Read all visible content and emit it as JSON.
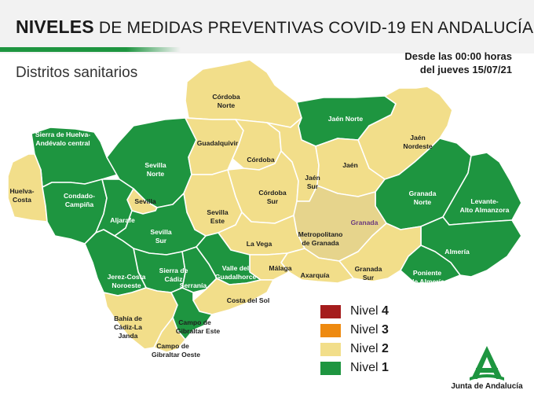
{
  "header": {
    "title_bold": "NIVELES",
    "title_rest": "DE MEDIDAS PREVENTIVAS COVID-19 EN ANDALUCÍA"
  },
  "subtitle": "Distritos sanitarios",
  "date": {
    "line1": "Desde las 00:00 horas",
    "line2": "del jueves 15/07/21"
  },
  "colors": {
    "nivel_4": "#a51c1c",
    "nivel_3": "#ee8a10",
    "nivel_2": "#f2de8a",
    "nivel_1": "#1e9540"
  },
  "legend": [
    {
      "prefix": "Nivel",
      "number": "4",
      "color": "#a51c1c"
    },
    {
      "prefix": "Nivel",
      "number": "3",
      "color": "#ee8a10"
    },
    {
      "prefix": "Nivel",
      "number": "2",
      "color": "#f2de8a"
    },
    {
      "prefix": "Nivel",
      "number": "1",
      "color": "#1e9540"
    }
  ],
  "districts": [
    {
      "name": "Córdoba Norte",
      "level": 2
    },
    {
      "name": "Jaén Norte",
      "level": 1
    },
    {
      "name": "Sierra de Huelva-Andévalo central",
      "level": 1
    },
    {
      "name": "Guadalquivir",
      "level": 2
    },
    {
      "name": "Jaén Nordeste",
      "level": 2
    },
    {
      "name": "Sevilla Norte",
      "level": 1
    },
    {
      "name": "Córdoba",
      "level": 2
    },
    {
      "name": "Jaén",
      "level": 2
    },
    {
      "name": "Jaén Sur",
      "level": 2
    },
    {
      "name": "Córdoba Sur",
      "level": 2
    },
    {
      "name": "Huelva-Costa",
      "level": 2
    },
    {
      "name": "Condado-Campiña",
      "level": 1
    },
    {
      "name": "Sevilla",
      "level": 2
    },
    {
      "name": "Sevilla Este",
      "level": 2
    },
    {
      "name": "Granada Norte",
      "level": 1
    },
    {
      "name": "Levante-Alto Almanzora",
      "level": 1
    },
    {
      "name": "Aljarafe",
      "level": 1
    },
    {
      "name": "Sevilla Sur",
      "level": 1
    },
    {
      "name": "Metropolitano de Granada",
      "level": 2
    },
    {
      "name": "La Vega",
      "level": 2
    },
    {
      "name": "Almería",
      "level": 1
    },
    {
      "name": "Sierra de Cádiz",
      "level": 1
    },
    {
      "name": "Jerez-Costa Noroeste",
      "level": 1
    },
    {
      "name": "Valle del Guadalhorce",
      "level": 1
    },
    {
      "name": "Málaga",
      "level": 2
    },
    {
      "name": "Axarquía",
      "level": 2
    },
    {
      "name": "Granada Sur",
      "level": 2
    },
    {
      "name": "Poniente de Almería",
      "level": 1
    },
    {
      "name": "Serranía",
      "level": 1
    },
    {
      "name": "Costa del Sol",
      "level": 2
    },
    {
      "name": "Bahía de Cádiz-La Janda",
      "level": 2
    },
    {
      "name": "Campo de Gibraltar Este",
      "level": 1
    },
    {
      "name": "Campo de Gibraltar Oeste",
      "level": 2
    }
  ],
  "map_labels": {
    "cordoba_norte_1": "Córdoba",
    "cordoba_norte_2": "Norte",
    "jaen_norte": "Jaén Norte",
    "sierra_huelva_1": "Sierra de Huelva-",
    "sierra_huelva_2": "Andévalo central",
    "guadalquivir": "Guadalquivir",
    "jaen_nordeste_1": "Jaén",
    "jaen_nordeste_2": "Nordeste",
    "sevilla_norte_1": "Sevilla",
    "sevilla_norte_2": "Norte",
    "cordoba": "Córdoba",
    "jaen": "Jaén",
    "jaen_sur_1": "Jaén",
    "jaen_sur_2": "Sur",
    "cordoba_sur_1": "Córdoba",
    "cordoba_sur_2": "Sur",
    "huelva_costa_1": "Huelva-",
    "huelva_costa_2": "Costa",
    "condado_1": "Condado-",
    "condado_2": "Campiña",
    "sevilla": "Sevilla",
    "sevilla_este_1": "Sevilla",
    "sevilla_este_2": "Este",
    "granada_norte_1": "Granada",
    "granada_norte_2": "Norte",
    "levante_1": "Levante-",
    "levante_2": "Alto Almanzora",
    "aljarafe": "Aljarafe",
    "sevilla_sur_1": "Sevilla",
    "sevilla_sur_2": "Sur",
    "granada_city": "Granada",
    "metro_1": "Metropolitano",
    "metro_2": "de Granada",
    "la_vega": "La Vega",
    "almeria": "Almería",
    "sierra_cadiz_1": "Sierra de",
    "sierra_cadiz_2": "Cádiz",
    "jerez_1": "Jerez-Costa",
    "jerez_2": "Noroeste",
    "valle_1": "Valle del",
    "valle_2": "Guadalhorce",
    "malaga": "Málaga",
    "axarquia": "Axarquía",
    "granada_sur_1": "Granada",
    "granada_sur_2": "Sur",
    "poniente_1": "Poniente",
    "poniente_2": "de Almería",
    "serrania": "Serranía",
    "costa_sol": "Costa del Sol",
    "bahia_1": "Bahía de",
    "bahia_2": "Cádiz-La",
    "bahia_3": "Janda",
    "cg_este_1": "Campo de",
    "cg_este_2": "Gibraltar Este",
    "cg_oeste_1": "Campo de",
    "cg_oeste_2": "Gibraltar Oeste"
  },
  "logo": {
    "text": "Junta de Andalucía"
  }
}
